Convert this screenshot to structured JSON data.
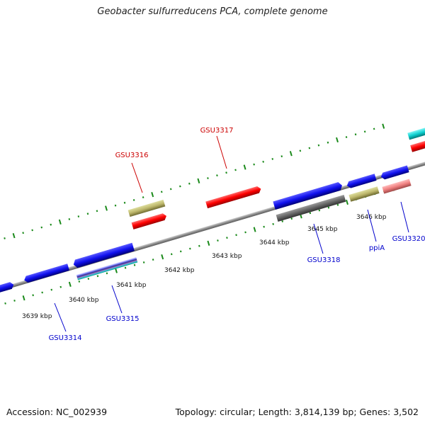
{
  "title": "Geobacter sulfurreducens PCA, complete genome",
  "footer": {
    "accession": "Accession: NC_002939",
    "summary": "Topology: circular; Length: 3,814,139 bp; Genes: 3,502"
  },
  "colors": {
    "axis": "#888888",
    "tick": "#1a8a1a",
    "label_red": "#cc0000",
    "label_blue": "#0000cc"
  },
  "tick_labels": [
    "3639 kbp",
    "3640 kbp",
    "3641 kbp",
    "3642 kbp",
    "3643 kbp",
    "3644 kbp",
    "3645 kbp",
    "3646 kbp"
  ],
  "genes": [
    {
      "label": "GSU3314",
      "color": "#0000cc"
    },
    {
      "label": "GSU3315",
      "color": "#0000cc"
    },
    {
      "label": "GSU3316",
      "color": "#cc0000"
    },
    {
      "label": "GSU3317",
      "color": "#cc0000"
    },
    {
      "label": "GSU3318",
      "color": "#0000cc"
    },
    {
      "label": "ppiA",
      "color": "#0000cc"
    },
    {
      "label": "GSU3320",
      "color": "#0000cc"
    }
  ]
}
